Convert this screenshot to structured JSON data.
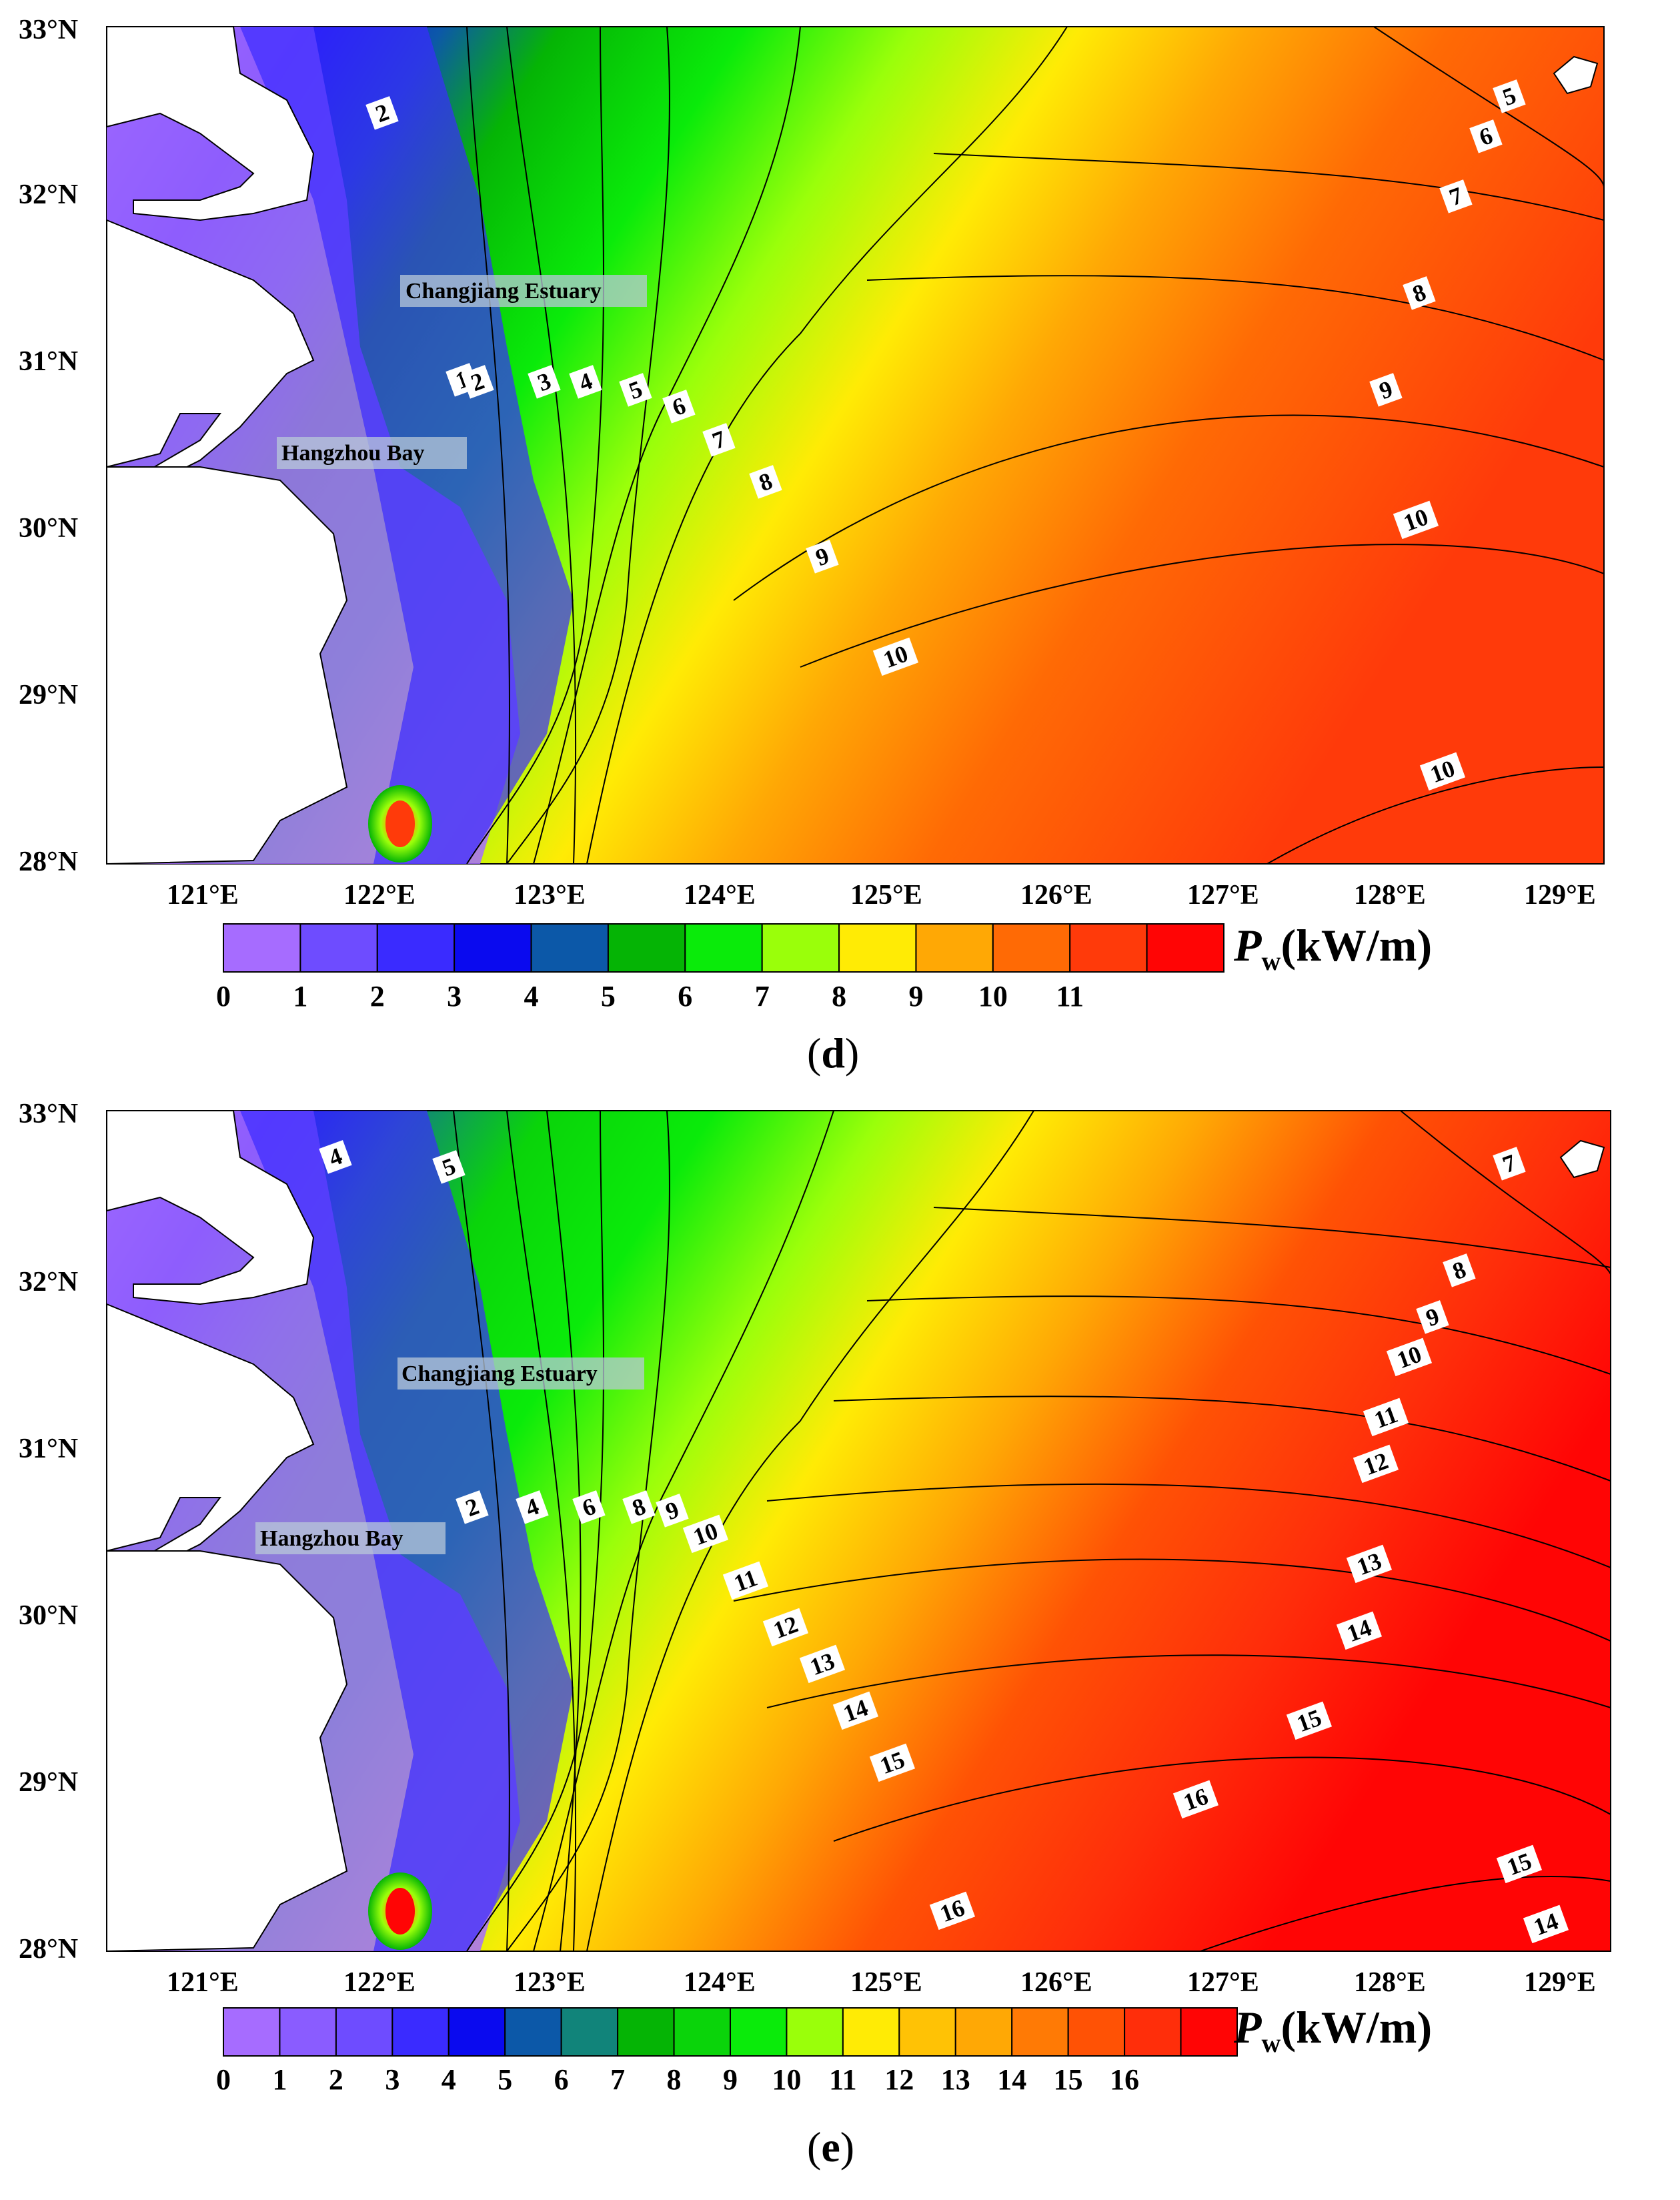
{
  "panels": [
    {
      "id": "d",
      "caption_open": "(",
      "caption_letter": "d",
      "caption_close": ")",
      "y_labels": [
        "33°N",
        "32°N",
        "31°N",
        "30°N",
        "29°N",
        "28°N"
      ],
      "x_labels": [
        "121°E",
        "122°E",
        "123°E",
        "124°E",
        "125°E",
        "126°E",
        "127°E",
        "128°E",
        "129°E"
      ],
      "region_labels": [
        "Changjiang Estuary",
        "Hangzhou Bay"
      ],
      "contour_labels": [
        "1",
        "2",
        "3",
        "4",
        "5",
        "6",
        "7",
        "8",
        "9",
        "10",
        "10",
        "10",
        "9",
        "8",
        "7",
        "6",
        "5",
        "2"
      ],
      "legend_ticks": [
        "0",
        "1",
        "2",
        "3",
        "4",
        "5",
        "6",
        "7",
        "8",
        "9",
        "10",
        "11"
      ],
      "legend_colors": [
        "#a66cff",
        "#6e4cff",
        "#3a2bff",
        "#0a0aef",
        "#0c58a8",
        "#05b405",
        "#0aeb0a",
        "#9aff0a",
        "#ffeb05",
        "#ffa805",
        "#ff6a05",
        "#ff3a0a",
        "#ff0505"
      ],
      "legend_unit_main": "P",
      "legend_unit_sub": "w",
      "legend_unit_tail": "(kW/m)"
    },
    {
      "id": "e",
      "caption_open": "(",
      "caption_letter": "e",
      "caption_close": ")",
      "y_labels": [
        "33°N",
        "32°N",
        "31°N",
        "30°N",
        "29°N",
        "28°N"
      ],
      "x_labels": [
        "121°E",
        "122°E",
        "123°E",
        "124°E",
        "125°E",
        "126°E",
        "127°E",
        "128°E",
        "129°E"
      ],
      "region_labels": [
        "Changjiang Estuary",
        "Hangzhou Bay"
      ],
      "contour_labels": [
        "2",
        "4",
        "6",
        "8",
        "9",
        "10",
        "11",
        "12",
        "13",
        "14",
        "15",
        "16",
        "16",
        "15",
        "14",
        "13",
        "12",
        "11",
        "10",
        "9",
        "8",
        "7",
        "15",
        "14",
        "4",
        "5"
      ],
      "legend_ticks": [
        "0",
        "1",
        "2",
        "3",
        "4",
        "5",
        "6",
        "7",
        "8",
        "9",
        "10",
        "11",
        "12",
        "13",
        "14",
        "15",
        "16"
      ],
      "legend_colors": [
        "#a66cff",
        "#8a5cff",
        "#6e4cff",
        "#3a2bff",
        "#0a0aef",
        "#0c58a8",
        "#11847a",
        "#05b405",
        "#0ad40a",
        "#0aeb0a",
        "#9aff0a",
        "#ffeb05",
        "#ffc205",
        "#ffa805",
        "#ff7a05",
        "#ff5205",
        "#ff2e0a",
        "#ff0505"
      ],
      "legend_unit_main": "P",
      "legend_unit_sub": "w",
      "legend_unit_tail": "(kW/m)"
    }
  ]
}
